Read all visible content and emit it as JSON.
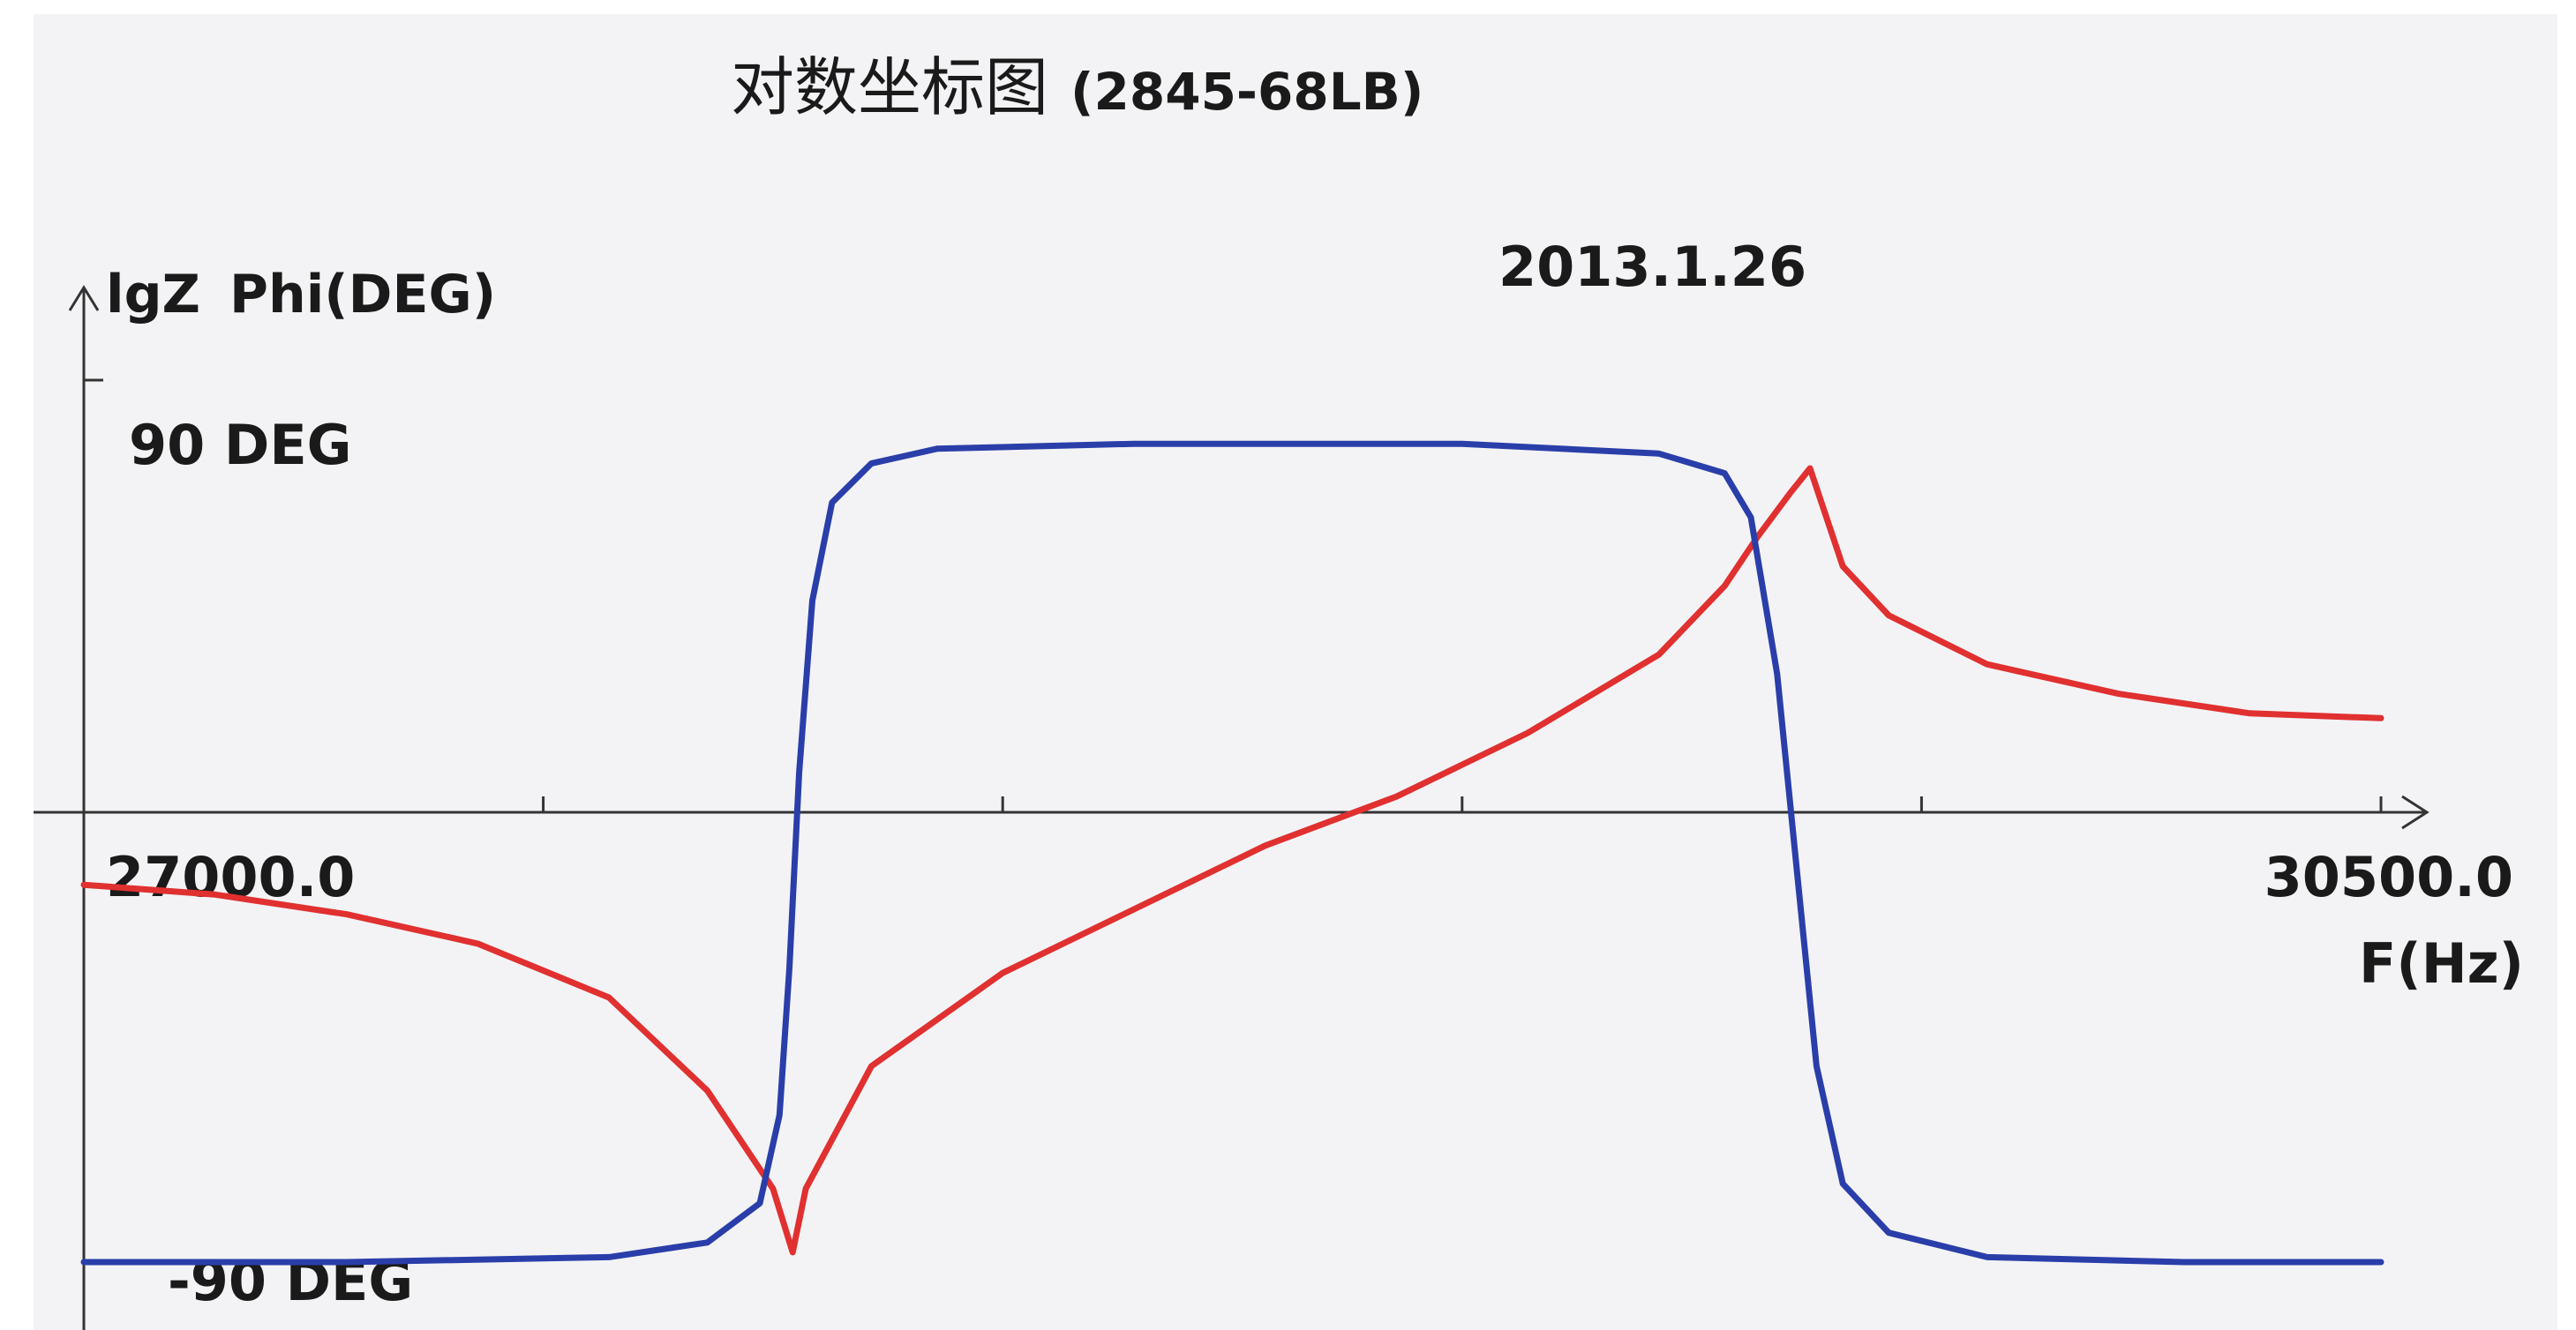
{
  "chart_data": {
    "type": "line",
    "title": "对数坐标图",
    "subtitle": "(2845-68LB)",
    "date_label": "2013.1.26",
    "ylabel_primary": "lgZ",
    "ylabel_secondary": "Phi(DEG)",
    "xlabel": "F(Hz)",
    "xlim": [
      27000.0,
      30500.0
    ],
    "x_tick_labels": {
      "min": "27000.0",
      "max": "30500.0"
    },
    "x_ticks": [
      27000,
      27700,
      28400,
      29100,
      29800,
      30500
    ],
    "phase_labels": {
      "top": "90 DEG",
      "bottom": "-90 DEG"
    },
    "phase_ylim": [
      -90,
      90
    ],
    "colors": {
      "lgZ": "#e03030",
      "phase": "#2a3eaa",
      "axis": "#333333",
      "background": "#f3f3f5"
    },
    "series": [
      {
        "name": "lgZ",
        "y_units": "relative (phase scale, -90..90)",
        "points": [
          [
            27000,
            -13
          ],
          [
            27200,
            -15
          ],
          [
            27400,
            -19
          ],
          [
            27600,
            -25
          ],
          [
            27800,
            -36
          ],
          [
            27950,
            -55
          ],
          [
            28050,
            -75
          ],
          [
            28080,
            -88
          ],
          [
            28100,
            -75
          ],
          [
            28200,
            -50
          ],
          [
            28400,
            -31
          ],
          [
            28600,
            -18
          ],
          [
            28800,
            -5
          ],
          [
            29000,
            5
          ],
          [
            29200,
            18
          ],
          [
            29400,
            34
          ],
          [
            29500,
            48
          ],
          [
            29550,
            58
          ],
          [
            29600,
            67
          ],
          [
            29630,
            72
          ],
          [
            29680,
            52
          ],
          [
            29750,
            42
          ],
          [
            29900,
            32
          ],
          [
            30100,
            26
          ],
          [
            30300,
            22
          ],
          [
            30500,
            21
          ]
        ]
      },
      {
        "name": "Phi(DEG)",
        "y_units": "deg",
        "points": [
          [
            27000,
            -90
          ],
          [
            27400,
            -90
          ],
          [
            27800,
            -89
          ],
          [
            27950,
            -86
          ],
          [
            28030,
            -78
          ],
          [
            28060,
            -60
          ],
          [
            28075,
            -30
          ],
          [
            28090,
            10
          ],
          [
            28110,
            45
          ],
          [
            28140,
            65
          ],
          [
            28200,
            73
          ],
          [
            28300,
            76
          ],
          [
            28600,
            77
          ],
          [
            29100,
            77
          ],
          [
            29400,
            75
          ],
          [
            29500,
            71
          ],
          [
            29540,
            62
          ],
          [
            29580,
            30
          ],
          [
            29610,
            -10
          ],
          [
            29640,
            -50
          ],
          [
            29680,
            -74
          ],
          [
            29750,
            -84
          ],
          [
            29900,
            -89
          ],
          [
            30200,
            -90
          ],
          [
            30500,
            -90
          ]
        ]
      }
    ]
  }
}
